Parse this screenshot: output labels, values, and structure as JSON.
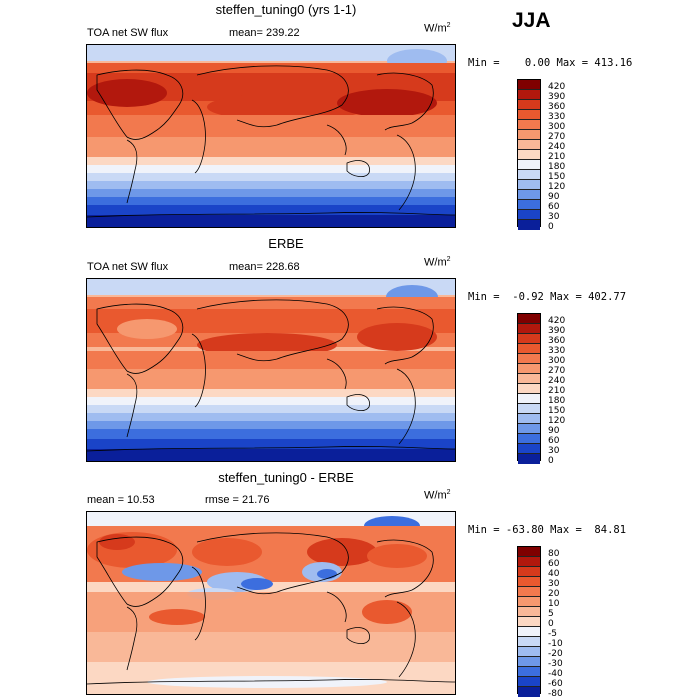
{
  "season": "JJA",
  "panels": [
    {
      "title": "steffen_tuning0 (yrs 1-1)",
      "left_label": "TOA net SW flux",
      "stat_text": "mean= 239.22",
      "units": "W/m",
      "units_exp": "2",
      "minmax": "Min =    0.00 Max = 413.16",
      "levels": [
        "420",
        "390",
        "360",
        "330",
        "300",
        "270",
        "240",
        "210",
        "180",
        "150",
        "120",
        "90",
        "60",
        "30",
        "0"
      ],
      "colors": [
        "#7f0000",
        "#b2180d",
        "#d63a1c",
        "#e9592f",
        "#f2794e",
        "#f6986f",
        "#f9b898",
        "#fcd8c3",
        "#f0f3fa",
        "#c9d9f5",
        "#9fbcf0",
        "#6e98e8",
        "#3c6ede",
        "#1a44c8",
        "#0a1f9a",
        "#000070"
      ]
    },
    {
      "title": "ERBE",
      "left_label": "TOA net SW flux",
      "stat_text": "mean= 228.68",
      "units": "W/m",
      "units_exp": "2",
      "minmax": "Min =  -0.92 Max = 402.77",
      "levels": [
        "420",
        "390",
        "360",
        "330",
        "300",
        "270",
        "240",
        "210",
        "180",
        "150",
        "120",
        "90",
        "60",
        "30",
        "0"
      ],
      "colors": [
        "#7f0000",
        "#b2180d",
        "#d63a1c",
        "#e9592f",
        "#f2794e",
        "#f6986f",
        "#f9b898",
        "#fcd8c3",
        "#f0f3fa",
        "#c9d9f5",
        "#9fbcf0",
        "#6e98e8",
        "#3c6ede",
        "#1a44c8",
        "#0a1f9a",
        "#000070"
      ]
    },
    {
      "title": "steffen_tuning0 - ERBE",
      "left_label": "mean =   10.53",
      "stat_text": "rmse =  21.76",
      "units": "W/m",
      "units_exp": "2",
      "minmax": "Min = -63.80 Max =  84.81",
      "levels": [
        "80",
        "60",
        "40",
        "30",
        "20",
        "10",
        "5",
        "0",
        "-5",
        "-10",
        "-20",
        "-30",
        "-40",
        "-60",
        "-80"
      ],
      "colors": [
        "#7f0000",
        "#b2180d",
        "#d63a1c",
        "#e9592f",
        "#f2794e",
        "#f6986f",
        "#f9b898",
        "#fcd8c3",
        "#f0f3fa",
        "#c9d9f5",
        "#9fbcf0",
        "#6e98e8",
        "#3c6ede",
        "#1a44c8",
        "#0a1f9a",
        "#000070"
      ]
    }
  ]
}
